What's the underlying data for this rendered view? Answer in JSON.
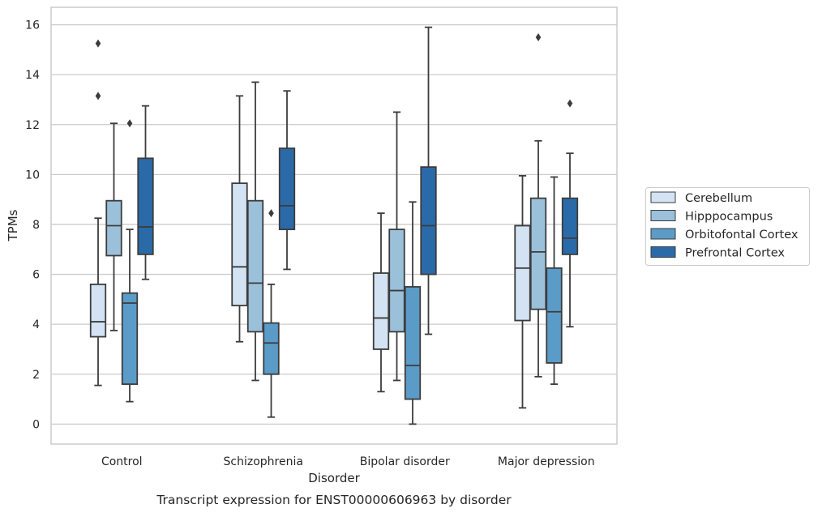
{
  "chart_data": {
    "type": "box",
    "caption": "Transcript expression for ENST00000606963 by disorder",
    "xlabel": "Disorder",
    "ylabel": "TPMs",
    "ylim": [
      -0.8,
      16.7
    ],
    "yticks": [
      0,
      2,
      4,
      6,
      8,
      10,
      12,
      14,
      16
    ],
    "grid": true,
    "legend_position": "right",
    "categories": [
      "Control",
      "Schizophrenia",
      "Bipolar disorder",
      "Major depression"
    ],
    "series": [
      {
        "name": "Cerebellum",
        "color": "#d3e3f3",
        "boxes": [
          {
            "whisker_low": 1.55,
            "q1": 3.5,
            "median": 4.1,
            "q3": 5.6,
            "whisker_high": 8.25,
            "outliers": [
              13.15,
              15.25
            ]
          },
          {
            "whisker_low": 3.3,
            "q1": 4.75,
            "median": 6.3,
            "q3": 9.65,
            "whisker_high": 13.15,
            "outliers": []
          },
          {
            "whisker_low": 1.3,
            "q1": 3.0,
            "median": 4.25,
            "q3": 6.05,
            "whisker_high": 8.45,
            "outliers": []
          },
          {
            "whisker_low": 0.65,
            "q1": 4.15,
            "median": 6.25,
            "q3": 7.95,
            "whisker_high": 9.95,
            "outliers": []
          }
        ]
      },
      {
        "name": "Hipppocampus",
        "color": "#9ac0da",
        "boxes": [
          {
            "whisker_low": 3.75,
            "q1": 6.75,
            "median": 7.95,
            "q3": 8.95,
            "whisker_high": 12.05,
            "outliers": []
          },
          {
            "whisker_low": 1.75,
            "q1": 3.7,
            "median": 5.65,
            "q3": 8.95,
            "whisker_high": 13.7,
            "outliers": []
          },
          {
            "whisker_low": 1.75,
            "q1": 3.7,
            "median": 5.35,
            "q3": 7.8,
            "whisker_high": 12.5,
            "outliers": []
          },
          {
            "whisker_low": 1.9,
            "q1": 4.6,
            "median": 6.9,
            "q3": 9.05,
            "whisker_high": 11.35,
            "outliers": [
              15.5
            ]
          }
        ]
      },
      {
        "name": "Orbitofontal Cortex",
        "color": "#5b9bc8",
        "boxes": [
          {
            "whisker_low": 0.9,
            "q1": 1.6,
            "median": 4.85,
            "q3": 5.25,
            "whisker_high": 7.8,
            "outliers": [
              12.05
            ]
          },
          {
            "whisker_low": 0.28,
            "q1": 2.0,
            "median": 3.25,
            "q3": 4.05,
            "whisker_high": 5.6,
            "outliers": [
              8.45
            ]
          },
          {
            "whisker_low": 0.0,
            "q1": 1.0,
            "median": 2.35,
            "q3": 5.5,
            "whisker_high": 8.9,
            "outliers": []
          },
          {
            "whisker_low": 1.6,
            "q1": 2.45,
            "median": 4.5,
            "q3": 6.25,
            "whisker_high": 9.9,
            "outliers": []
          }
        ]
      },
      {
        "name": "Prefrontal Cortex",
        "color": "#2b6aa8",
        "boxes": [
          {
            "whisker_low": 5.8,
            "q1": 6.8,
            "median": 7.9,
            "q3": 10.65,
            "whisker_high": 12.75,
            "outliers": []
          },
          {
            "whisker_low": 6.2,
            "q1": 7.8,
            "median": 8.75,
            "q3": 11.05,
            "whisker_high": 13.35,
            "outliers": []
          },
          {
            "whisker_low": 3.6,
            "q1": 6.0,
            "median": 7.95,
            "q3": 10.3,
            "whisker_high": 15.9,
            "outliers": []
          },
          {
            "whisker_low": 3.9,
            "q1": 6.8,
            "median": 7.45,
            "q3": 9.05,
            "whisker_high": 10.85,
            "outliers": [
              12.85
            ]
          }
        ]
      }
    ]
  }
}
